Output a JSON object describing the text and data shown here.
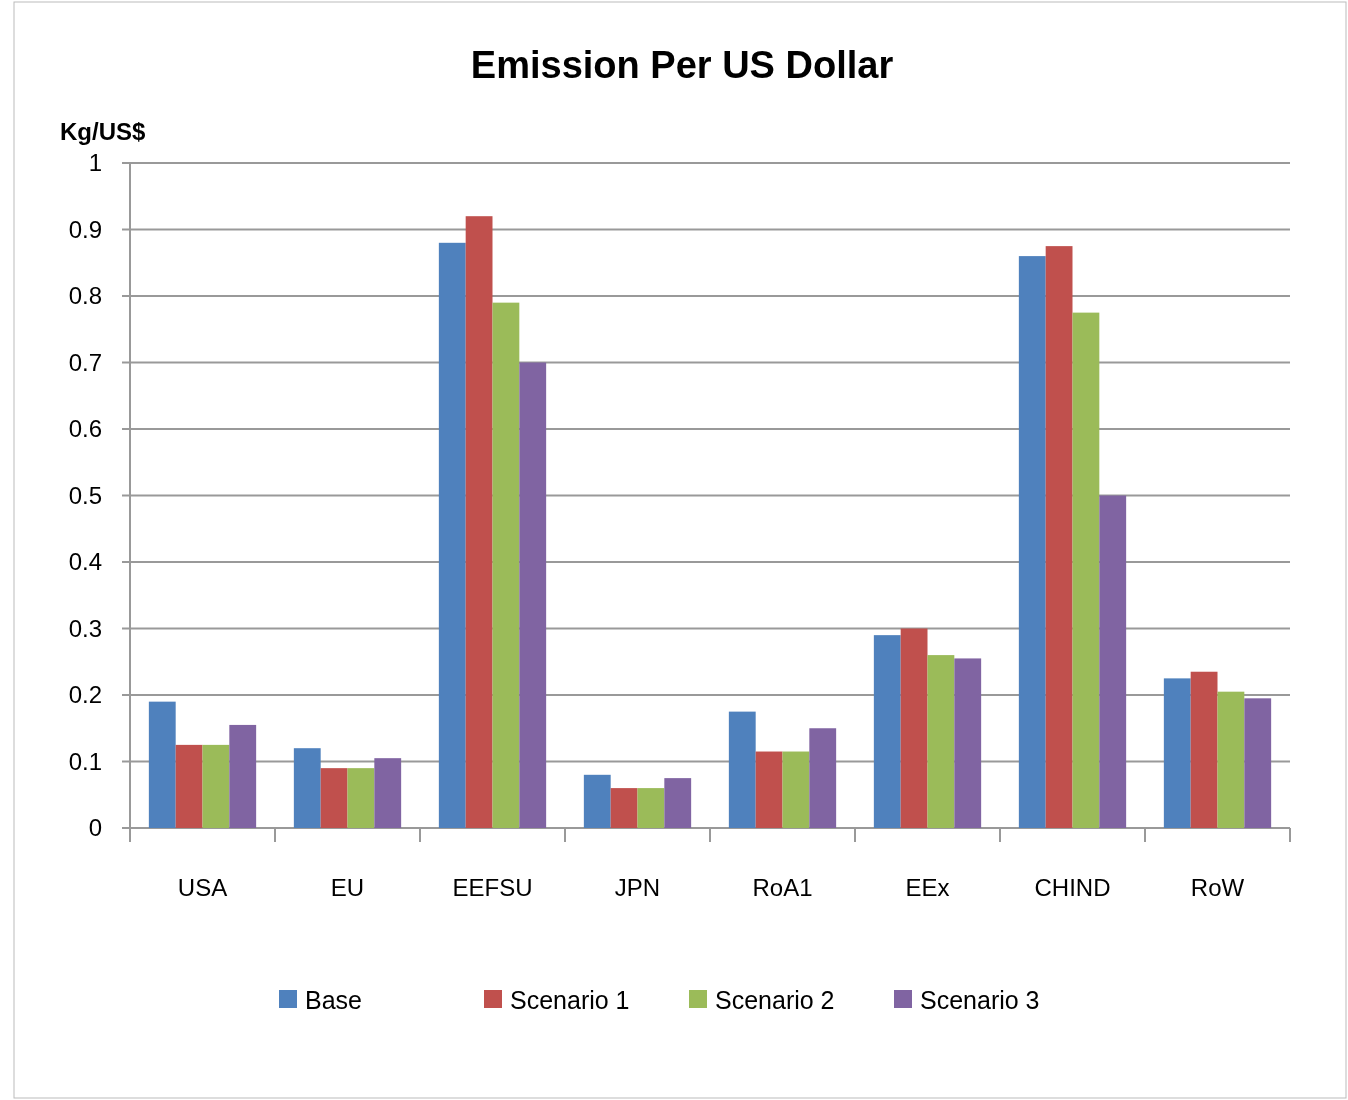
{
  "chart_data": {
    "type": "bar",
    "title": "Emission Per US Dollar",
    "ylabel": "Kg/US$",
    "categories": [
      "USA",
      "EU",
      "EEFSU",
      "JPN",
      "RoA1",
      "EEx",
      "CHIND",
      "RoW"
    ],
    "series": [
      {
        "name": "Base",
        "color": "#4f81bd",
        "values": [
          0.19,
          0.12,
          0.88,
          0.08,
          0.175,
          0.29,
          0.86,
          0.225
        ]
      },
      {
        "name": "Scenario 1",
        "color": "#c0504d",
        "values": [
          0.125,
          0.09,
          0.92,
          0.06,
          0.115,
          0.3,
          0.875,
          0.235
        ]
      },
      {
        "name": "Scenario 2",
        "color": "#9bbb59",
        "values": [
          0.125,
          0.09,
          0.79,
          0.06,
          0.115,
          0.26,
          0.775,
          0.205
        ]
      },
      {
        "name": "Scenario 3",
        "color": "#8064a2",
        "values": [
          0.155,
          0.105,
          0.7,
          0.075,
          0.15,
          0.255,
          0.5,
          0.195
        ]
      }
    ],
    "ylim": [
      0,
      1
    ],
    "yticks": [
      0,
      0.1,
      0.2,
      0.3,
      0.4,
      0.5,
      0.6,
      0.7,
      0.8,
      0.9,
      1
    ],
    "grid": "y",
    "legend": "bottom"
  }
}
